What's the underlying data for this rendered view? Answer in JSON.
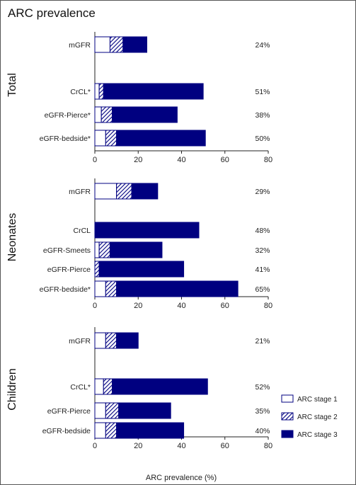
{
  "title": "ARC prevalence",
  "colors": {
    "stage1": "#ffffff",
    "stage2": "#000080",
    "stage3": "#000080",
    "outline": "#000080"
  },
  "chart_data": {
    "type": "bar",
    "orientation": "horizontal",
    "stacked": true,
    "xlabel": "ARC prevalence (%)",
    "xlim": [
      0,
      80
    ],
    "xticks": [
      0,
      20,
      40,
      60,
      80
    ],
    "legend": {
      "placement": "bottom-right",
      "entries": [
        "ARC stage 1",
        "ARC stage 2",
        "ARC stage 3"
      ]
    },
    "series_names": [
      "ARC stage 1",
      "ARC stage 2",
      "ARC stage 3"
    ],
    "panels": [
      {
        "group": "Total",
        "rows": [
          {
            "label": "mGFR",
            "values": [
              7,
              6,
              11
            ],
            "total_label": "24%"
          },
          {
            "label": "CrCL*",
            "values": [
              2,
              2,
              46
            ],
            "total_label": "51%"
          },
          {
            "label": "eGFR-Pierce*",
            "values": [
              3,
              5,
              30
            ],
            "total_label": "38%"
          },
          {
            "label": "eGFR-bedside*",
            "values": [
              5,
              5,
              41
            ],
            "total_label": "50%"
          }
        ]
      },
      {
        "group": "Neonates",
        "rows": [
          {
            "label": "mGFR",
            "values": [
              10,
              7,
              12
            ],
            "total_label": "29%"
          },
          {
            "label": "CrCL",
            "values": [
              0,
              0,
              48
            ],
            "total_label": "48%"
          },
          {
            "label": "eGFR-Smeets",
            "values": [
              2,
              5,
              24
            ],
            "total_label": "32%"
          },
          {
            "label": "eGFR-Pierce",
            "values": [
              0,
              2,
              39
            ],
            "total_label": "41%"
          },
          {
            "label": "eGFR-bedside*",
            "values": [
              5,
              5,
              56
            ],
            "total_label": "65%"
          }
        ]
      },
      {
        "group": "Children",
        "rows": [
          {
            "label": "mGFR",
            "values": [
              5,
              5,
              10
            ],
            "total_label": "21%"
          },
          {
            "label": "CrCL*",
            "values": [
              4,
              4,
              44
            ],
            "total_label": "52%"
          },
          {
            "label": "eGFR-Pierce",
            "values": [
              5,
              6,
              24
            ],
            "total_label": "35%"
          },
          {
            "label": "eGFR-bedside",
            "values": [
              5,
              5,
              31
            ],
            "total_label": "40%"
          }
        ]
      }
    ]
  }
}
